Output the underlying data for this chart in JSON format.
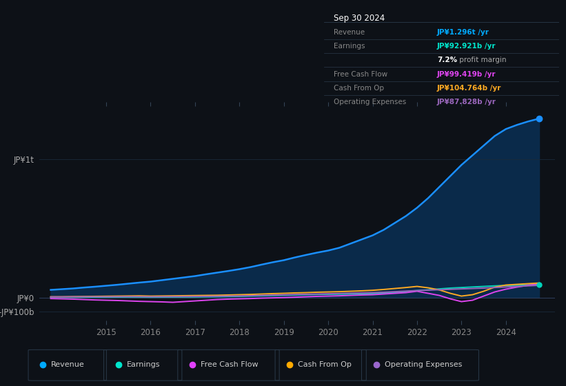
{
  "bg_color": "#0d1117",
  "plot_bg_color": "#0d1117",
  "grid_color": "#1a2a3a",
  "yticks_labels": [
    "JP¥1t",
    "JP¥0",
    "-JP¥100b"
  ],
  "yticks_values": [
    1000000000000,
    0,
    -100000000000
  ],
  "xlim_start": 2013.5,
  "xlim_end": 2025.1,
  "ylim_min": -180000000000,
  "ylim_max": 1400000000000,
  "xticks": [
    2015,
    2016,
    2017,
    2018,
    2019,
    2020,
    2021,
    2022,
    2023,
    2024
  ],
  "legend": [
    {
      "label": "Revenue",
      "color": "#00aaff"
    },
    {
      "label": "Earnings",
      "color": "#00e5cc"
    },
    {
      "label": "Free Cash Flow",
      "color": "#e040fb"
    },
    {
      "label": "Cash From Op",
      "color": "#ffaa00"
    },
    {
      "label": "Operating Expenses",
      "color": "#9966cc"
    }
  ],
  "revenue": {
    "color": "#1a8fff",
    "fill_color": "#0a2a4a",
    "x": [
      2013.75,
      2014.0,
      2014.25,
      2014.5,
      2014.75,
      2015.0,
      2015.25,
      2015.5,
      2015.75,
      2016.0,
      2016.25,
      2016.5,
      2016.75,
      2017.0,
      2017.25,
      2017.5,
      2017.75,
      2018.0,
      2018.25,
      2018.5,
      2018.75,
      2019.0,
      2019.25,
      2019.5,
      2019.75,
      2020.0,
      2020.25,
      2020.5,
      2020.75,
      2021.0,
      2021.25,
      2021.5,
      2021.75,
      2022.0,
      2022.25,
      2022.5,
      2022.75,
      2023.0,
      2023.25,
      2023.5,
      2023.75,
      2024.0,
      2024.25,
      2024.5,
      2024.75
    ],
    "y": [
      55000000000.0,
      60000000000.0,
      65000000000.0,
      72000000000.0,
      78000000000.0,
      85000000000.0,
      92000000000.0,
      100000000000.0,
      108000000000.0,
      115000000000.0,
      125000000000.0,
      135000000000.0,
      145000000000.0,
      155000000000.0,
      168000000000.0,
      180000000000.0,
      192000000000.0,
      205000000000.0,
      220000000000.0,
      238000000000.0,
      255000000000.0,
      270000000000.0,
      290000000000.0,
      308000000000.0,
      325000000000.0,
      340000000000.0,
      360000000000.0,
      390000000000.0,
      420000000000.0,
      450000000000.0,
      490000000000.0,
      540000000000.0,
      590000000000.0,
      650000000000.0,
      720000000000.0,
      800000000000.0,
      880000000000.0,
      960000000000.0,
      1030000000000.0,
      1100000000000.0,
      1170000000000.0,
      1220000000000.0,
      1250000000000.0,
      1275000000000.0,
      1296000000000.0
    ]
  },
  "earnings": {
    "color": "#00d4bb",
    "x": [
      2013.75,
      2014.0,
      2014.25,
      2014.5,
      2014.75,
      2015.0,
      2015.25,
      2015.5,
      2015.75,
      2016.0,
      2016.25,
      2016.5,
      2016.75,
      2017.0,
      2017.25,
      2017.5,
      2017.75,
      2018.0,
      2018.25,
      2018.5,
      2018.75,
      2019.0,
      2019.25,
      2019.5,
      2019.75,
      2020.0,
      2020.25,
      2020.5,
      2020.75,
      2021.0,
      2021.25,
      2021.5,
      2021.75,
      2022.0,
      2022.25,
      2022.5,
      2022.75,
      2023.0,
      2023.25,
      2023.5,
      2023.75,
      2024.0,
      2024.25,
      2024.5,
      2024.75
    ],
    "y": [
      1000000000.0,
      1000000000.0,
      1500000000.0,
      2000000000.0,
      2000000000.0,
      2000000000.0,
      2500000000.0,
      3000000000.0,
      3000000000.0,
      2000000000.0,
      2500000000.0,
      3000000000.0,
      3500000000.0,
      4000000000.0,
      5000000000.0,
      6000000000.0,
      7000000000.0,
      8000000000.0,
      10000000000.0,
      12000000000.0,
      14000000000.0,
      16000000000.0,
      18000000000.0,
      20000000000.0,
      22000000000.0,
      23000000000.0,
      24000000000.0,
      25000000000.0,
      26000000000.0,
      28000000000.0,
      32000000000.0,
      37000000000.0,
      43000000000.0,
      50000000000.0,
      55000000000.0,
      62000000000.0,
      68000000000.0,
      72000000000.0,
      76000000000.0,
      80000000000.0,
      84000000000.0,
      87000000000.0,
      89000000000.0,
      91000000000.0,
      92921000000.0
    ]
  },
  "free_cash_flow": {
    "color": "#dd44ee",
    "x": [
      2013.75,
      2014.0,
      2014.25,
      2014.5,
      2014.75,
      2015.0,
      2015.25,
      2015.5,
      2015.75,
      2016.0,
      2016.25,
      2016.5,
      2016.75,
      2017.0,
      2017.25,
      2017.5,
      2017.75,
      2018.0,
      2018.25,
      2018.5,
      2018.75,
      2019.0,
      2019.25,
      2019.5,
      2019.75,
      2020.0,
      2020.25,
      2020.5,
      2020.75,
      2021.0,
      2021.25,
      2021.5,
      2021.75,
      2022.0,
      2022.25,
      2022.5,
      2022.75,
      2023.0,
      2023.25,
      2023.5,
      2023.75,
      2024.0,
      2024.25,
      2024.5,
      2024.75
    ],
    "y": [
      -8000000000.0,
      -10000000000.0,
      -12000000000.0,
      -15000000000.0,
      -18000000000.0,
      -20000000000.0,
      -22000000000.0,
      -25000000000.0,
      -28000000000.0,
      -30000000000.0,
      -32000000000.0,
      -35000000000.0,
      -30000000000.0,
      -25000000000.0,
      -20000000000.0,
      -15000000000.0,
      -12000000000.0,
      -10000000000.0,
      -8000000000.0,
      -5000000000.0,
      -3000000000.0,
      -1000000000.0,
      2000000000.0,
      5000000000.0,
      8000000000.0,
      10000000000.0,
      12000000000.0,
      15000000000.0,
      18000000000.0,
      20000000000.0,
      25000000000.0,
      30000000000.0,
      35000000000.0,
      45000000000.0,
      30000000000.0,
      15000000000.0,
      -10000000000.0,
      -30000000000.0,
      -20000000000.0,
      10000000000.0,
      40000000000.0,
      60000000000.0,
      75000000000.0,
      88000000000.0,
      99419000000.0
    ]
  },
  "cash_from_op": {
    "color": "#ffaa22",
    "x": [
      2013.75,
      2014.0,
      2014.25,
      2014.5,
      2014.75,
      2015.0,
      2015.25,
      2015.5,
      2015.75,
      2016.0,
      2016.25,
      2016.5,
      2016.75,
      2017.0,
      2017.25,
      2017.5,
      2017.75,
      2018.0,
      2018.25,
      2018.5,
      2018.75,
      2019.0,
      2019.25,
      2019.5,
      2019.75,
      2020.0,
      2020.25,
      2020.5,
      2020.75,
      2021.0,
      2021.25,
      2021.5,
      2021.75,
      2022.0,
      2022.25,
      2022.5,
      2022.75,
      2023.0,
      2023.25,
      2023.5,
      2023.75,
      2024.0,
      2024.25,
      2024.5,
      2024.75
    ],
    "y": [
      5000000000.0,
      5000000000.0,
      6000000000.0,
      7000000000.0,
      8000000000.0,
      9000000000.0,
      10000000000.0,
      11000000000.0,
      12000000000.0,
      10000000000.0,
      11000000000.0,
      12000000000.0,
      13000000000.0,
      14000000000.0,
      15000000000.0,
      16000000000.0,
      18000000000.0,
      20000000000.0,
      22000000000.0,
      25000000000.0,
      28000000000.0,
      30000000000.0,
      33000000000.0,
      35000000000.0,
      38000000000.0,
      40000000000.0,
      42000000000.0,
      45000000000.0,
      48000000000.0,
      52000000000.0,
      58000000000.0,
      65000000000.0,
      72000000000.0,
      80000000000.0,
      70000000000.0,
      55000000000.0,
      30000000000.0,
      10000000000.0,
      20000000000.0,
      45000000000.0,
      75000000000.0,
      90000000000.0,
      95000000000.0,
      100000000000.0,
      104764000000.0
    ]
  },
  "operating_expenses": {
    "color": "#9966bb",
    "x": [
      2013.75,
      2014.0,
      2014.25,
      2014.5,
      2014.75,
      2015.0,
      2015.25,
      2015.5,
      2015.75,
      2016.0,
      2016.25,
      2016.5,
      2016.75,
      2017.0,
      2017.25,
      2017.5,
      2017.75,
      2018.0,
      2018.25,
      2018.5,
      2018.75,
      2019.0,
      2019.25,
      2019.5,
      2019.75,
      2020.0,
      2020.25,
      2020.5,
      2020.75,
      2021.0,
      2021.25,
      2021.5,
      2021.75,
      2022.0,
      2022.25,
      2022.5,
      2022.75,
      2023.0,
      2023.25,
      2023.5,
      2023.75,
      2024.0,
      2024.25,
      2024.5,
      2024.75
    ],
    "y": [
      4000000000.0,
      4000000000.0,
      4500000000.0,
      5000000000.0,
      5000000000.0,
      5000000000.0,
      5500000000.0,
      6000000000.0,
      6000000000.0,
      5000000000.0,
      5500000000.0,
      6000000000.0,
      6500000000.0,
      7000000000.0,
      8000000000.0,
      9000000000.0,
      10000000000.0,
      11000000000.0,
      13000000000.0,
      15000000000.0,
      17000000000.0,
      19000000000.0,
      21000000000.0,
      23000000000.0,
      25000000000.0,
      27000000000.0,
      29000000000.0,
      31000000000.0,
      33000000000.0,
      35000000000.0,
      38000000000.0,
      42000000000.0,
      46000000000.0,
      50000000000.0,
      53000000000.0,
      56000000000.0,
      59000000000.0,
      62000000000.0,
      65000000000.0,
      68000000000.0,
      72000000000.0,
      76000000000.0,
      80000000000.0,
      84000000000.0,
      87828000000.0
    ]
  },
  "infobox": {
    "title": "Sep 30 2024",
    "rows": [
      {
        "label": "Revenue",
        "value": "JP¥1.296t /yr",
        "value_color": "#00aaff"
      },
      {
        "label": "Earnings",
        "value": "JP¥92.921b /yr",
        "value_color": "#00e5cc"
      },
      {
        "label": "",
        "value": "7.2% profit margin",
        "value_color": "#aaaaaa",
        "special": true
      },
      {
        "label": "Free Cash Flow",
        "value": "JP¥99.419b /yr",
        "value_color": "#dd44ee"
      },
      {
        "label": "Cash From Op",
        "value": "JP¥104.764b /yr",
        "value_color": "#ffaa22"
      },
      {
        "label": "Operating Expenses",
        "value": "JP¥87.828b /yr",
        "value_color": "#9966bb"
      }
    ]
  }
}
